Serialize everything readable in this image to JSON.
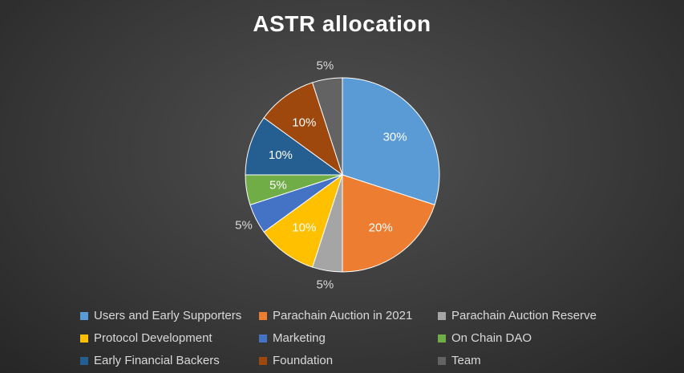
{
  "chart_data": {
    "type": "pie",
    "title": "ASTR allocation",
    "slices": [
      {
        "name": "Users and Early Supporters",
        "value": 30,
        "label": "30%",
        "color": "#5b9bd5",
        "label_pos": "inside"
      },
      {
        "name": "Parachain Auction in 2021",
        "value": 20,
        "label": "20%",
        "color": "#ed7d31",
        "label_pos": "inside"
      },
      {
        "name": "Parachain Auction Reserve",
        "value": 5,
        "label": "5%",
        "color": "#a5a5a5",
        "label_pos": "outside"
      },
      {
        "name": "Protocol Development",
        "value": 10,
        "label": "10%",
        "color": "#ffc000",
        "label_pos": "inside"
      },
      {
        "name": "Marketing",
        "value": 5,
        "label": "5%",
        "color": "#4472c4",
        "label_pos": "outside"
      },
      {
        "name": "On Chain DAO",
        "value": 5,
        "label": "5%",
        "color": "#70ad47",
        "label_pos": "inside"
      },
      {
        "name": "Early Financial Backers",
        "value": 10,
        "label": "10%",
        "color": "#255e91",
        "label_pos": "inside"
      },
      {
        "name": "Foundation",
        "value": 10,
        "label": "10%",
        "color": "#9e480e",
        "label_pos": "inside"
      },
      {
        "name": "Team",
        "value": 5,
        "label": "5%",
        "color": "#636363",
        "label_pos": "outside"
      }
    ],
    "legend_position": "bottom"
  }
}
